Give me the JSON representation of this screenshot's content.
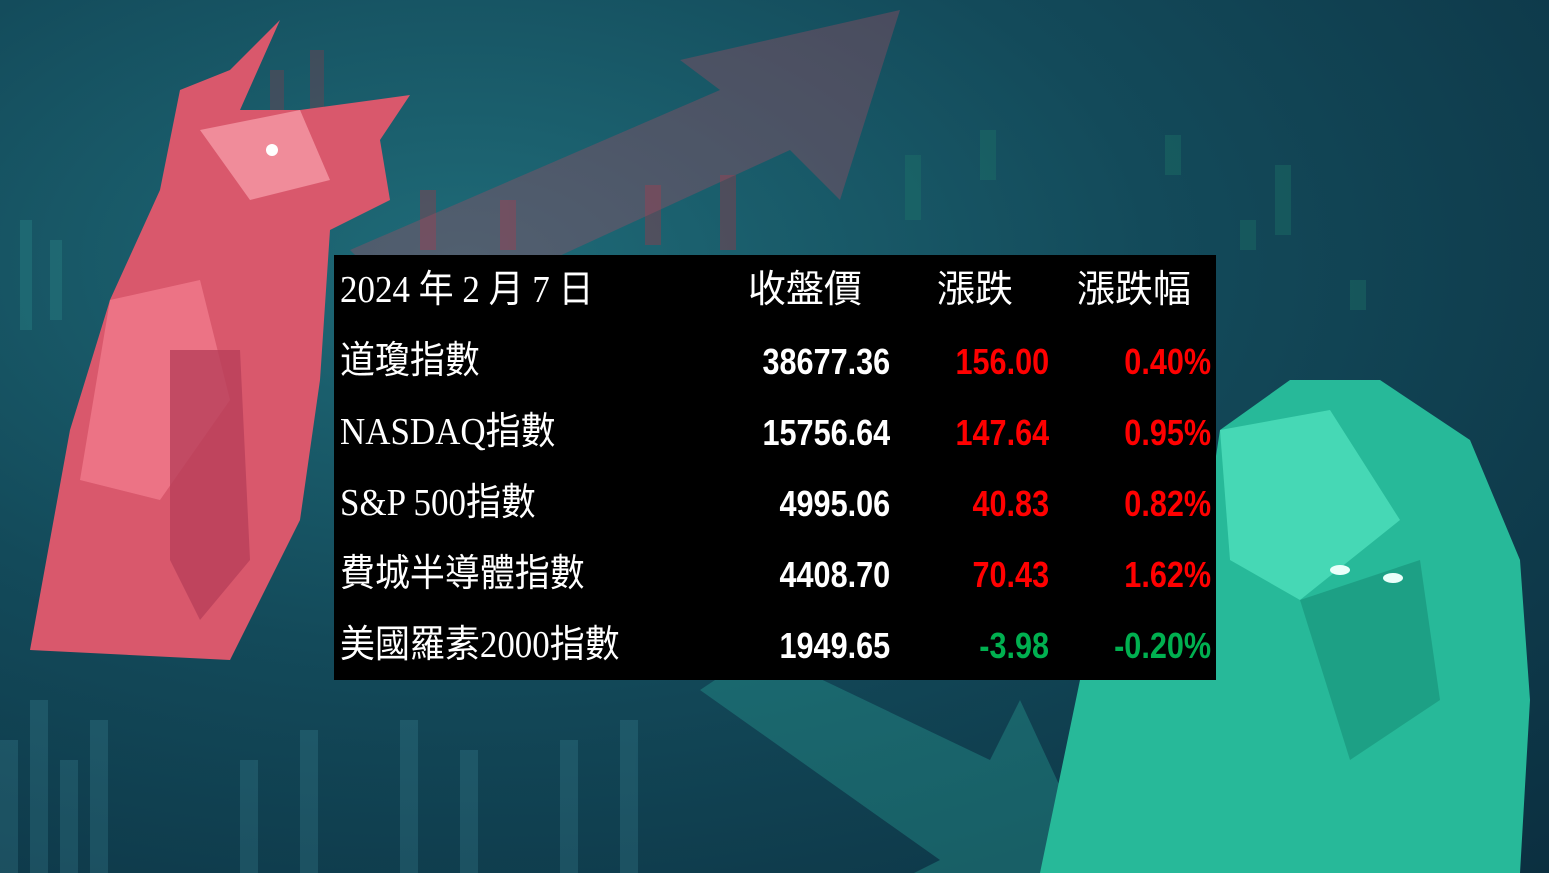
{
  "header": {
    "date": "2024 年 2 月 7 日",
    "close": "收盤價",
    "change": "漲跌",
    "pct": "漲跌幅"
  },
  "colors": {
    "up": "#ff0000",
    "down": "#00b050",
    "text": "#ffffff",
    "panel": "#000000"
  },
  "rows": [
    {
      "name": "道瓊指數",
      "close": "38677.36",
      "change": "156.00",
      "pct": "0.40%",
      "direction": "up"
    },
    {
      "name": "NASDAQ指數",
      "close": "15756.64",
      "change": "147.64",
      "pct": "0.95%",
      "direction": "up"
    },
    {
      "name": "S&P 500指數",
      "close": "4995.06",
      "change": "40.83",
      "pct": "0.82%",
      "direction": "up"
    },
    {
      "name": "費城半導體指數",
      "close": "4408.70",
      "change": "70.43",
      "pct": "1.62%",
      "direction": "up"
    },
    {
      "name": "美國羅素2000指數",
      "close": "1949.65",
      "change": "-3.98",
      "pct": "-0.20%",
      "direction": "down"
    }
  ],
  "background": {
    "left_figure": "bull-icon",
    "right_figure": "bear-icon",
    "decor": "candlestick-chart"
  }
}
